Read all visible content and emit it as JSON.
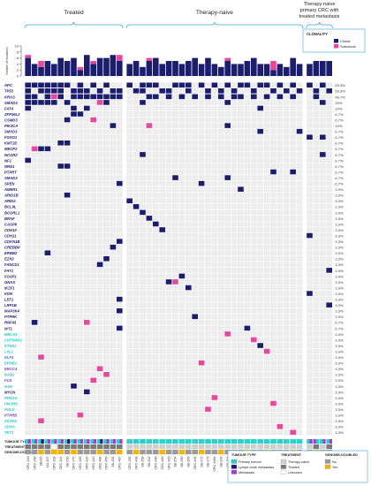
{
  "chart_data": {
    "type": "heatmap",
    "title": "",
    "groups": [
      {
        "label": "Treated",
        "n": 15
      },
      {
        "label": "Therapy-naive",
        "n": 27
      },
      {
        "label": "Therapy-naive primary CRC with treated metastasis",
        "n": 4
      }
    ],
    "clonality_legend": {
      "title": "CLONALITY",
      "items": [
        "Clonal",
        "Subclonal"
      ],
      "colors": [
        "#1b1d6e",
        "#e8489a"
      ]
    },
    "bar_axis": {
      "label": "Number of mutations",
      "ticks": [
        0,
        2,
        4,
        6,
        8,
        10
      ],
      "ylim": [
        0,
        10
      ]
    },
    "bars": {
      "clonal": [
        6,
        4,
        3,
        5,
        4,
        6,
        5,
        6,
        2,
        7,
        4,
        6,
        6,
        7,
        5,
        4,
        5,
        3,
        5,
        6,
        4,
        5,
        5,
        4,
        5,
        6,
        4,
        6,
        4,
        3,
        5,
        4,
        4,
        5,
        6,
        4,
        4,
        2,
        4,
        3,
        6,
        4,
        4,
        5,
        5,
        5
      ],
      "subclonal": [
        1,
        0,
        2,
        0,
        0,
        0,
        0,
        0,
        1,
        0,
        1,
        0,
        0,
        0,
        2,
        0,
        0,
        0,
        1,
        0,
        0,
        0,
        0,
        0,
        0,
        0,
        0,
        0,
        0,
        0,
        1,
        0,
        0,
        0,
        0,
        0,
        0,
        3,
        0,
        0,
        0,
        0,
        0,
        0,
        0,
        0
      ]
    },
    "samples": [
      "CRC-148",
      "CRC-390",
      "SB335",
      "112-157",
      "CRC-181",
      "CRC-144",
      "SB-Z16",
      "CRC-470",
      "CRC-155",
      "CRC-420",
      "CRC-140",
      "CRC-486",
      "CRC-450",
      "SB-Z81",
      "CRC-487",
      "CRC-455",
      "CRC-408",
      "SB-Z58",
      "SB-Z62",
      "CRC-496",
      "CRC-460",
      "CRC-400",
      "SB-Z54",
      "SB-Z80",
      "SB-Z65",
      "CRC-406",
      "SB-Z72",
      "SB-Z75",
      "CRC-406b",
      "SB-Z66",
      "SB-Z64",
      "CRC-467",
      "112-067",
      "CRC-485",
      "CRC-171",
      "SB-Z50",
      "SB-Z62b",
      "CRC-449",
      "SB-Z63",
      "CRC-403",
      "SB-Z71",
      "SB-Z70",
      "SB-Z96",
      "CRC-393",
      "CRC-265",
      "CRC-180"
    ],
    "genes": [
      "APC",
      "TP53",
      "KRAS",
      "SMAD4",
      "FAT4",
      "ZFP36L2",
      "CSMD3",
      "PIK3CA",
      "SMYD3",
      "FOXO1",
      "KMT2D",
      "MECP2",
      "NCOR2",
      "NF1",
      "NRG1",
      "PTPRT",
      "SMAD2",
      "SPEN",
      "AMER1",
      "ARID1B",
      "ARID2",
      "BCL9L",
      "BCORL1",
      "BRAF",
      "CASP8",
      "CDH10",
      "CDH11",
      "CDKN1B",
      "CREBBP",
      "ERBB2",
      "EZH2",
      "FANCD1",
      "FAT1",
      "FOXP1",
      "GNAS",
      "IKZF1",
      "KDR",
      "LEF1",
      "LRP1B",
      "MAP3K4",
      "PTPRK",
      "RNF43",
      "WT1",
      "BRCA1",
      "CNTNAP2",
      "ETNK1",
      "LYL1",
      "ELF4",
      "EPHB1",
      "ERCC4",
      "NAB2",
      "FUS",
      "GSN",
      "MYCN",
      "PHOX2",
      "PIK3R1",
      "POLD",
      "PTPRB",
      "SCAF4",
      "SDHA",
      "TET1"
    ],
    "gene_colors": {
      "BRCA1": "#20c8c8",
      "CNTNAP2": "#20c8c8",
      "ETNK1": "#20c8c8",
      "LYL1": "#20c8c8",
      "ELF4": "#3a6fe0",
      "EPHB1": "#20c8c8",
      "ERCC4": "#7a3fb0",
      "NAB2": "#20c8c8",
      "FUS": "#7a3fb0",
      "GSN": "#20c8c8",
      "MYCN": "#1b1d6e",
      "PHOX2": "#20c8c8",
      "PIK3R1": "#20c8c8",
      "POLD": "#20c8c8",
      "PTPRB": "#7a3fb0",
      "SCAF4": "#20c8c8",
      "SDHA": "#20c8c8",
      "TET1": "#20c8c8"
    },
    "percentages": [
      "53.3%",
      "53.3%",
      "46.7%",
      "20%",
      "10%",
      "6.7%",
      "6.7%",
      "10%",
      "6.7%",
      "6.7%",
      "6.7%",
      "6.7%",
      "6.7%",
      "6.7%",
      "6.7%",
      "6.7%",
      "6.7%",
      "6.7%",
      "3.3%",
      "3.3%",
      "3.3%",
      "3.3%",
      "3.3%",
      "3.3%",
      "3.3%",
      "3.3%",
      "3.3%",
      "3.3%",
      "3.3%",
      "3.3%",
      "3.3%",
      "3.3%",
      "3.3%",
      "3.3%",
      "3.3%",
      "3.3%",
      "3.3%",
      "3.3%",
      "3.3%",
      "3.3%",
      "3.3%",
      "6.7%",
      "6.7%",
      "3.3%",
      "3.3%",
      "3.3%",
      "3.3%",
      "3.3%",
      "3.3%",
      "3.3%",
      "3.3%",
      "3.3%",
      "3.3%",
      "3.3%",
      "3.3%",
      "3.3%",
      "3.3%",
      "3.3%",
      "3.3%",
      "3.3%",
      "3.3%"
    ],
    "mutations": [
      {
        "gene": "APC",
        "samples": [
          0,
          1,
          2,
          3,
          4,
          5,
          6,
          8,
          10,
          12,
          15,
          17,
          18,
          19,
          22,
          23,
          24,
          26,
          28,
          30,
          32,
          33,
          35,
          36,
          38,
          40,
          42,
          44
        ],
        "type": "clonal"
      },
      {
        "gene": "TP53",
        "samples": [
          0,
          2,
          3,
          4,
          5,
          7,
          8,
          9,
          11,
          13,
          14,
          16,
          17,
          20,
          21,
          24,
          27,
          29,
          31,
          34,
          37,
          39,
          41,
          43,
          45
        ],
        "type": "clonal"
      },
      {
        "gene": "KRAS",
        "samples": [
          0,
          1,
          3,
          5,
          7,
          8,
          9,
          10,
          11,
          12,
          13,
          14,
          18,
          19,
          21,
          23,
          25,
          27,
          29,
          31,
          32,
          34,
          36,
          38,
          40,
          43
        ],
        "type": "clonal"
      },
      {
        "gene": "KRAS",
        "samples": [
          4
        ],
        "type": "subclonal"
      },
      {
        "gene": "SMAD4",
        "samples": [
          0,
          1,
          2,
          3,
          4,
          6,
          12,
          17,
          30,
          44
        ],
        "type": "clonal"
      },
      {
        "gene": "SMAD4",
        "samples": [
          11
        ],
        "type": "subclonal"
      },
      {
        "gene": "FAT4",
        "samples": [
          0,
          7,
          9,
          35
        ],
        "type": "clonal"
      },
      {
        "gene": "ZFP36L2",
        "samples": [
          7,
          8
        ],
        "type": "clonal"
      },
      {
        "gene": "CSMD3",
        "samples": [
          6
        ],
        "type": "clonal"
      },
      {
        "gene": "CSMD3",
        "samples": [
          10
        ],
        "type": "subclonal"
      },
      {
        "gene": "PIK3CA",
        "samples": [
          13,
          30
        ],
        "type": "clonal"
      },
      {
        "gene": "PIK3CA",
        "samples": [
          18
        ],
        "type": "subclonal"
      },
      {
        "gene": "SMYD3",
        "samples": [
          35,
          41
        ],
        "type": "clonal"
      },
      {
        "gene": "FOXO1",
        "samples": [
          42,
          44
        ],
        "type": "clonal"
      },
      {
        "gene": "KMT2D",
        "samples": [
          5,
          6
        ],
        "type": "clonal"
      },
      {
        "gene": "MECP2",
        "samples": [
          2,
          3
        ],
        "type": "clonal"
      },
      {
        "gene": "MECP2",
        "samples": [
          1
        ],
        "type": "subclonal"
      },
      {
        "gene": "NCOR2",
        "samples": [
          17,
          44
        ],
        "type": "clonal"
      },
      {
        "gene": "NF1",
        "samples": [
          0
        ],
        "type": "clonal"
      },
      {
        "gene": "NRG1",
        "samples": [
          5,
          6
        ],
        "type": "clonal"
      },
      {
        "gene": "PTPRT",
        "samples": [
          37,
          40
        ],
        "type": "clonal"
      },
      {
        "gene": "SMAD2",
        "samples": [
          22,
          30
        ],
        "type": "clonal"
      },
      {
        "gene": "SPEN",
        "samples": [
          14,
          26
        ],
        "type": "clonal"
      },
      {
        "gene": "AMER1",
        "samples": [
          32
        ],
        "type": "clonal"
      },
      {
        "gene": "ARID1B",
        "samples": [
          6
        ],
        "type": "clonal"
      },
      {
        "gene": "ARID2",
        "samples": [
          15
        ],
        "type": "clonal"
      },
      {
        "gene": "BCL9L",
        "samples": [
          16
        ],
        "type": "clonal"
      },
      {
        "gene": "BCORL1",
        "samples": [
          17
        ],
        "type": "clonal"
      },
      {
        "gene": "BRAF",
        "samples": [
          18
        ],
        "type": "clonal"
      },
      {
        "gene": "CASP8",
        "samples": [
          19
        ],
        "type": "clonal"
      },
      {
        "gene": "CDH10",
        "samples": [
          20
        ],
        "type": "clonal"
      },
      {
        "gene": "CDH11",
        "samples": [
          42
        ],
        "type": "clonal"
      },
      {
        "gene": "CDKN1B",
        "samples": [
          14
        ],
        "type": "clonal"
      },
      {
        "gene": "CREBBP",
        "samples": [
          13
        ],
        "type": "clonal"
      },
      {
        "gene": "ERBB2",
        "samples": [
          3
        ],
        "type": "clonal"
      },
      {
        "gene": "EZH2",
        "samples": [
          12
        ],
        "type": "clonal"
      },
      {
        "gene": "FANCD1",
        "samples": [
          11
        ],
        "type": "clonal"
      },
      {
        "gene": "FAT1",
        "samples": [
          45
        ],
        "type": "clonal"
      },
      {
        "gene": "FOXP1",
        "samples": [
          23
        ],
        "type": "clonal"
      },
      {
        "gene": "GNAS",
        "samples": [
          21
        ],
        "type": "clonal"
      },
      {
        "gene": "GNAS",
        "samples": [
          22
        ],
        "type": "subclonal"
      },
      {
        "gene": "IKZF1",
        "samples": [
          24
        ],
        "type": "clonal"
      },
      {
        "gene": "KDR",
        "samples": [
          42
        ],
        "type": "clonal"
      },
      {
        "gene": "LEF1",
        "samples": [
          14
        ],
        "type": "clonal"
      },
      {
        "gene": "LRP1B",
        "samples": [
          45
        ],
        "type": "clonal"
      },
      {
        "gene": "MAP3K4",
        "samples": [
          14
        ],
        "type": "clonal"
      },
      {
        "gene": "PTPRK",
        "samples": [
          25
        ],
        "type": "clonal"
      },
      {
        "gene": "RNF43",
        "samples": [
          1
        ],
        "type": "clonal"
      },
      {
        "gene": "RNF43",
        "samples": [
          9
        ],
        "type": "subclonal"
      },
      {
        "gene": "WT1",
        "samples": [
          14,
          33
        ],
        "type": "clonal"
      },
      {
        "gene": "BRCA1",
        "samples": [
          30
        ],
        "type": "subclonal"
      },
      {
        "gene": "CNTNAP2",
        "samples": [
          34
        ],
        "type": "subclonal"
      },
      {
        "gene": "ETNK1",
        "samples": [
          35
        ],
        "type": "clonal"
      },
      {
        "gene": "LYL1",
        "samples": [
          36
        ],
        "type": "subclonal"
      },
      {
        "gene": "ELF4",
        "samples": [
          2
        ],
        "type": "subclonal"
      },
      {
        "gene": "EPHB1",
        "samples": [
          26
        ],
        "type": "subclonal"
      },
      {
        "gene": "ERCC4",
        "samples": [
          11
        ],
        "type": "subclonal"
      },
      {
        "gene": "NAB2",
        "samples": [
          12
        ],
        "type": "subclonal"
      },
      {
        "gene": "FUS",
        "samples": [
          10
        ],
        "type": "subclonal"
      },
      {
        "gene": "GSN",
        "samples": [
          7
        ],
        "type": "clonal"
      },
      {
        "gene": "MYCN",
        "samples": [
          9
        ],
        "type": "clonal"
      },
      {
        "gene": "PHOX2",
        "samples": [
          28
        ],
        "type": "subclonal"
      },
      {
        "gene": "PIK3R1",
        "samples": [
          37
        ],
        "type": "subclonal"
      },
      {
        "gene": "POLD",
        "samples": [
          27
        ],
        "type": "subclonal"
      },
      {
        "gene": "PTPRB",
        "samples": [
          8
        ],
        "type": "subclonal"
      },
      {
        "gene": "SCAF4",
        "samples": [
          2
        ],
        "type": "subclonal"
      },
      {
        "gene": "SDHA",
        "samples": [
          38
        ],
        "type": "subclonal"
      },
      {
        "gene": "TET1",
        "samples": [
          40
        ],
        "type": "subclonal"
      }
    ],
    "annotation_tracks": {
      "labels": [
        "TUMOUR TYPE",
        "TREATMENT",
        "GENOME-DOUBLED"
      ],
      "tumour_type": [
        0,
        0,
        0,
        0,
        0,
        0,
        0,
        0,
        0,
        0,
        0,
        0,
        0,
        0,
        0,
        0,
        0,
        0,
        0,
        0,
        0,
        0,
        0,
        0,
        0,
        0,
        0,
        0,
        0,
        0,
        0,
        0,
        0,
        0,
        0,
        0,
        0,
        0,
        0,
        0,
        0,
        0,
        0,
        2,
        0,
        0
      ],
      "tumour_type_alt": [
        2,
        2,
        1,
        2,
        2,
        2,
        1,
        2,
        2,
        2,
        2,
        1,
        2,
        2,
        2,
        0,
        0,
        0,
        0,
        0,
        0,
        0,
        0,
        0,
        0,
        0,
        0,
        0,
        0,
        0,
        0,
        0,
        0,
        0,
        0,
        0,
        0,
        0,
        0,
        0,
        0,
        0,
        2,
        0,
        2,
        2
      ],
      "treatment": [
        1,
        1,
        1,
        1,
        3,
        1,
        1,
        1,
        1,
        1,
        1,
        1,
        1,
        1,
        1,
        0,
        0,
        0,
        0,
        0,
        0,
        0,
        0,
        0,
        0,
        0,
        0,
        0,
        0,
        0,
        0,
        0,
        0,
        0,
        0,
        0,
        0,
        0,
        0,
        0,
        0,
        0,
        0,
        1,
        0,
        1
      ],
      "genome_doubled": [
        0,
        0,
        1,
        0,
        1,
        1,
        0,
        1,
        0,
        0,
        0,
        1,
        0,
        0,
        1,
        0,
        1,
        0,
        0,
        0,
        1,
        0,
        0,
        1,
        0,
        0,
        1,
        0,
        0,
        1,
        0,
        0,
        0,
        1,
        0,
        0,
        1,
        0,
        0,
        0,
        1,
        0,
        0,
        1,
        0,
        0
      ]
    },
    "legends": [
      {
        "title": "TUMOUR TYPE",
        "items": [
          {
            "label": "Primary tumour",
            "color": "#27d1c8"
          },
          {
            "label": "Lymph-node metastasis",
            "color": "#1b1d6e"
          },
          {
            "label": "Metastasis",
            "color": "#a43bd6"
          }
        ]
      },
      {
        "title": "TREATMENT",
        "items": [
          {
            "label": "Therapy-naive",
            "color": "#cfcfcf"
          },
          {
            "label": "Treated",
            "color": "#7a7a7a"
          },
          {
            "label": "Unknown",
            "color": "#ffffff"
          }
        ]
      },
      {
        "title": "GENOME-DOUBLED",
        "items": [
          {
            "label": "No",
            "color": "#9a9a9a"
          },
          {
            "label": "Yes",
            "color": "#f3b400"
          }
        ]
      }
    ]
  }
}
